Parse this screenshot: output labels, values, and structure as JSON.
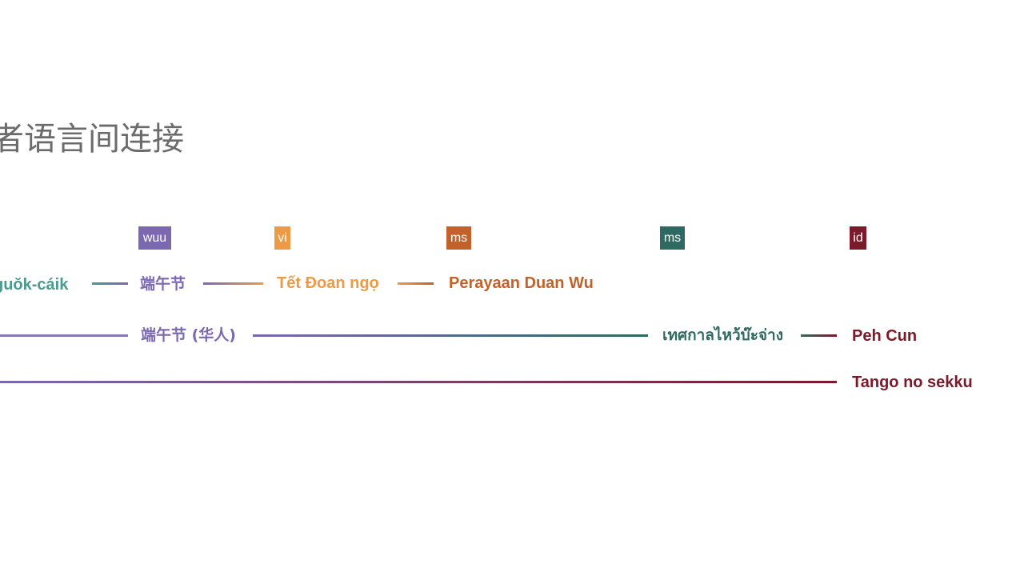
{
  "title": "者语言间连接",
  "badges": {
    "wuu": "wuu",
    "vi": "vi",
    "ms1": "ms",
    "ms2": "ms",
    "id": "id"
  },
  "row1": {
    "cdo": "guŏk-cáik",
    "wuu": "端午节",
    "vi": "Tết Đoan ngọ",
    "ms": "Perayaan Duan Wu"
  },
  "row2": {
    "zh": "端午节 (华人)",
    "ms": "เทศกาลไหว้บ๊ะจ่าง",
    "id": "Peh Cun"
  },
  "row3": {
    "ja": "Tango no sekku"
  },
  "colors": {
    "teal": "#4a9a8f",
    "purple": "#7b68b0",
    "orange": "#ee9a45",
    "rust": "#c2612a",
    "darkteal": "#2e6a62",
    "maroon": "#7a1a2a"
  }
}
